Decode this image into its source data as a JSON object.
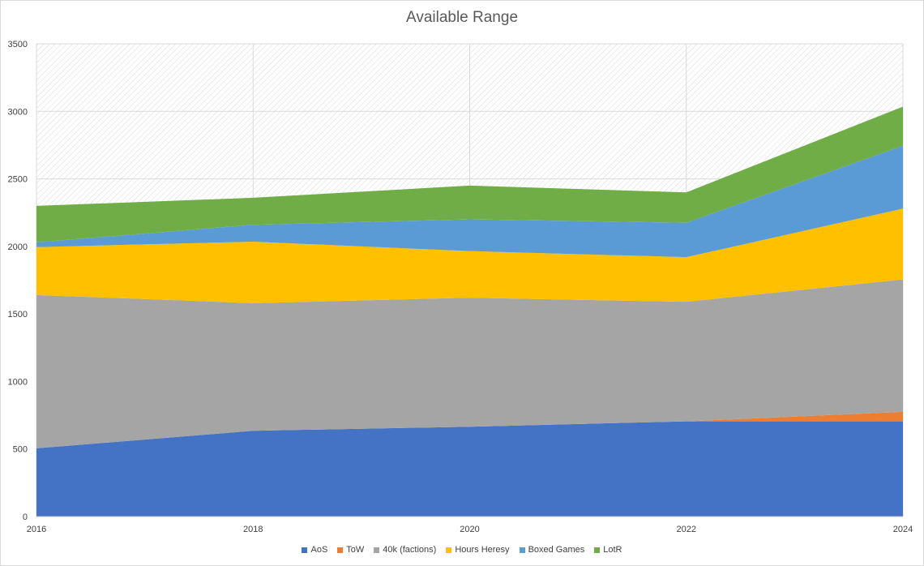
{
  "chart_data": {
    "type": "area",
    "stacked": true,
    "title": "Available Range",
    "xlabel": "",
    "ylabel": "",
    "x": [
      2016,
      2018,
      2020,
      2022,
      2024
    ],
    "x_ticks": [
      "2016",
      "2018",
      "2020",
      "2022",
      "2024"
    ],
    "ylim": [
      0,
      3500
    ],
    "y_ticks": [
      "0",
      "500",
      "1000",
      "1500",
      "2000",
      "2500",
      "3000",
      "3500"
    ],
    "grid": true,
    "plot_background": "hatched",
    "legend_position": "bottom",
    "series": [
      {
        "name": "AoS",
        "color": "#4472c4",
        "values": [
          505,
          635,
          665,
          705,
          705
        ]
      },
      {
        "name": "ToW",
        "color": "#ed7d31",
        "values": [
          0,
          0,
          0,
          0,
          70
        ]
      },
      {
        "name": "40k (factions)",
        "color": "#a5a5a5",
        "values": [
          1135,
          945,
          955,
          885,
          980
        ]
      },
      {
        "name": "Hours Heresy",
        "color": "#ffc000",
        "values": [
          355,
          455,
          345,
          330,
          525
        ]
      },
      {
        "name": "Boxed Games",
        "color": "#5b9bd5",
        "values": [
          35,
          125,
          235,
          255,
          465
        ]
      },
      {
        "name": "LotR",
        "color": "#70ad47",
        "values": [
          270,
          200,
          250,
          225,
          290
        ]
      }
    ]
  }
}
